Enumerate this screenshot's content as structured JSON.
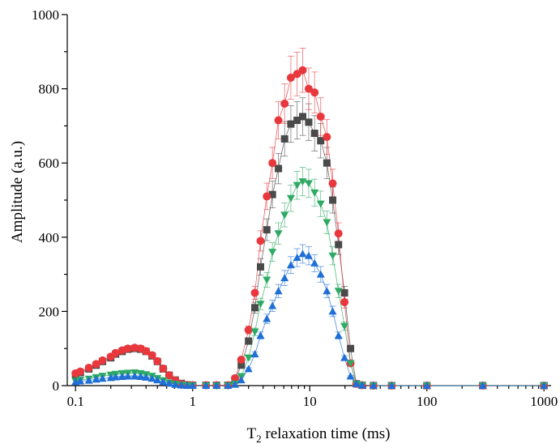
{
  "chart_data": {
    "type": "scatter",
    "title": "",
    "xlabel_main": "T",
    "xlabel_sub": "2",
    "xlabel_rest": " relaxation time (ms)",
    "ylabel": "Amplitude (a.u.)",
    "xscale": "log",
    "xlim": [
      0.085,
      1150
    ],
    "ylim": [
      0,
      1000
    ],
    "x_ticks": [
      0.1,
      1,
      10,
      100,
      1000
    ],
    "x_tick_labels": [
      "0.1",
      "1",
      "10",
      "100",
      "1000"
    ],
    "y_ticks": [
      0,
      200,
      400,
      600,
      800,
      1000
    ],
    "y_tick_labels": [
      "0",
      "200",
      "400",
      "600",
      "800",
      "1000"
    ],
    "grid": false,
    "legend": "none",
    "colors": {
      "square": "#4a4a4a",
      "circle": "#e8383d",
      "triangle_down": "#2eaa64",
      "triangle_up": "#1f6fd6"
    },
    "series": [
      {
        "marker": "square",
        "color": "#4a4a4a",
        "points": [
          [
            0.1,
            30
          ],
          [
            0.11,
            35
          ],
          [
            0.13,
            45
          ],
          [
            0.15,
            55
          ],
          [
            0.17,
            65
          ],
          [
            0.2,
            75
          ],
          [
            0.22,
            85
          ],
          [
            0.25,
            92
          ],
          [
            0.28,
            98
          ],
          [
            0.32,
            100
          ],
          [
            0.36,
            98
          ],
          [
            0.4,
            92
          ],
          [
            0.45,
            80
          ],
          [
            0.5,
            65
          ],
          [
            0.56,
            45
          ],
          [
            0.63,
            28
          ],
          [
            0.71,
            15
          ],
          [
            0.8,
            6
          ],
          [
            0.9,
            2
          ],
          [
            1,
            1
          ],
          [
            1.3,
            1
          ],
          [
            1.6,
            1
          ],
          [
            2,
            1
          ],
          [
            2.3,
            15
          ],
          [
            2.6,
            55
          ],
          [
            3,
            120
          ],
          [
            3.4,
            210
          ],
          [
            3.8,
            320
          ],
          [
            4.3,
            420
          ],
          [
            4.8,
            515
          ],
          [
            5.4,
            585
          ],
          [
            6.1,
            665
          ],
          [
            6.9,
            705
          ],
          [
            7.8,
            715
          ],
          [
            8.7,
            725
          ],
          [
            9.8,
            710
          ],
          [
            11,
            680
          ],
          [
            12.4,
            660
          ],
          [
            14,
            600
          ],
          [
            15.7,
            500
          ],
          [
            17.6,
            380
          ],
          [
            19.8,
            250
          ],
          [
            22.3,
            100
          ],
          [
            25,
            5
          ],
          [
            28,
            1
          ],
          [
            35,
            0
          ],
          [
            50,
            0
          ],
          [
            100,
            0
          ],
          [
            300,
            0
          ],
          [
            1000,
            0
          ]
        ]
      },
      {
        "marker": "circle",
        "color": "#e8383d",
        "points": [
          [
            0.1,
            33
          ],
          [
            0.11,
            38
          ],
          [
            0.13,
            48
          ],
          [
            0.15,
            58
          ],
          [
            0.17,
            68
          ],
          [
            0.2,
            78
          ],
          [
            0.22,
            88
          ],
          [
            0.25,
            95
          ],
          [
            0.28,
            100
          ],
          [
            0.32,
            102
          ],
          [
            0.36,
            100
          ],
          [
            0.4,
            93
          ],
          [
            0.45,
            82
          ],
          [
            0.5,
            66
          ],
          [
            0.56,
            46
          ],
          [
            0.63,
            28
          ],
          [
            0.71,
            14
          ],
          [
            0.8,
            5
          ],
          [
            0.9,
            2
          ],
          [
            1,
            1
          ],
          [
            1.3,
            1
          ],
          [
            1.6,
            1
          ],
          [
            2,
            1
          ],
          [
            2.3,
            20
          ],
          [
            2.6,
            70
          ],
          [
            3,
            150
          ],
          [
            3.4,
            250
          ],
          [
            3.8,
            390
          ],
          [
            4.3,
            510
          ],
          [
            4.8,
            600
          ],
          [
            5.4,
            715
          ],
          [
            6.1,
            760
          ],
          [
            6.9,
            830
          ],
          [
            7.8,
            840
          ],
          [
            8.7,
            850
          ],
          [
            9.8,
            800
          ],
          [
            11,
            790
          ],
          [
            12.4,
            725
          ],
          [
            14,
            670
          ],
          [
            15.7,
            545
          ],
          [
            17.6,
            410
          ],
          [
            19.8,
            225
          ],
          [
            22.3,
            60
          ],
          [
            25,
            5
          ],
          [
            28,
            1
          ],
          [
            35,
            0
          ],
          [
            50,
            0
          ],
          [
            100,
            0
          ],
          [
            300,
            0
          ],
          [
            1000,
            0
          ]
        ]
      },
      {
        "marker": "triangle_down",
        "color": "#2eaa64",
        "points": [
          [
            0.1,
            12
          ],
          [
            0.11,
            15
          ],
          [
            0.13,
            18
          ],
          [
            0.15,
            22
          ],
          [
            0.17,
            26
          ],
          [
            0.2,
            29
          ],
          [
            0.22,
            31
          ],
          [
            0.25,
            33
          ],
          [
            0.28,
            34
          ],
          [
            0.32,
            35
          ],
          [
            0.36,
            33
          ],
          [
            0.4,
            30
          ],
          [
            0.45,
            26
          ],
          [
            0.5,
            20
          ],
          [
            0.56,
            14
          ],
          [
            0.63,
            8
          ],
          [
            0.71,
            4
          ],
          [
            0.8,
            2
          ],
          [
            0.9,
            1
          ],
          [
            1,
            0
          ],
          [
            1.3,
            0
          ],
          [
            1.6,
            0
          ],
          [
            2,
            0
          ],
          [
            2.3,
            5
          ],
          [
            2.6,
            25
          ],
          [
            3,
            75
          ],
          [
            3.4,
            145
          ],
          [
            3.8,
            220
          ],
          [
            4.3,
            285
          ],
          [
            4.8,
            360
          ],
          [
            5.4,
            410
          ],
          [
            6.1,
            460
          ],
          [
            6.9,
            505
          ],
          [
            7.8,
            540
          ],
          [
            8.7,
            550
          ],
          [
            9.8,
            545
          ],
          [
            11,
            520
          ],
          [
            12.4,
            490
          ],
          [
            14,
            440
          ],
          [
            15.7,
            350
          ],
          [
            17.6,
            255
          ],
          [
            19.8,
            160
          ],
          [
            22.3,
            60
          ],
          [
            25,
            5
          ],
          [
            28,
            1
          ],
          [
            35,
            0
          ],
          [
            50,
            0
          ],
          [
            100,
            0
          ],
          [
            300,
            0
          ],
          [
            1000,
            0
          ]
        ]
      },
      {
        "marker": "triangle_up",
        "color": "#1f6fd6",
        "points": [
          [
            0.1,
            10
          ],
          [
            0.11,
            12
          ],
          [
            0.13,
            14
          ],
          [
            0.15,
            17
          ],
          [
            0.17,
            19
          ],
          [
            0.2,
            21
          ],
          [
            0.22,
            23
          ],
          [
            0.25,
            24
          ],
          [
            0.28,
            25
          ],
          [
            0.32,
            25
          ],
          [
            0.36,
            24
          ],
          [
            0.4,
            22
          ],
          [
            0.45,
            19
          ],
          [
            0.5,
            15
          ],
          [
            0.56,
            10
          ],
          [
            0.63,
            6
          ],
          [
            0.71,
            3
          ],
          [
            0.8,
            1
          ],
          [
            0.9,
            0
          ],
          [
            1,
            0
          ],
          [
            1.3,
            0
          ],
          [
            1.6,
            0
          ],
          [
            2,
            0
          ],
          [
            2.3,
            3
          ],
          [
            2.6,
            15
          ],
          [
            3,
            45
          ],
          [
            3.4,
            85
          ],
          [
            3.8,
            135
          ],
          [
            4.3,
            180
          ],
          [
            4.8,
            215
          ],
          [
            5.4,
            255
          ],
          [
            6.1,
            290
          ],
          [
            6.9,
            325
          ],
          [
            7.8,
            345
          ],
          [
            8.7,
            355
          ],
          [
            9.8,
            350
          ],
          [
            11,
            330
          ],
          [
            12.4,
            300
          ],
          [
            14,
            255
          ],
          [
            15.7,
            200
          ],
          [
            17.6,
            135
          ],
          [
            19.8,
            75
          ],
          [
            22.3,
            25
          ],
          [
            25,
            5
          ],
          [
            28,
            1
          ],
          [
            35,
            0
          ],
          [
            50,
            0
          ],
          [
            100,
            0
          ],
          [
            300,
            0
          ],
          [
            1000,
            0
          ]
        ]
      }
    ]
  }
}
